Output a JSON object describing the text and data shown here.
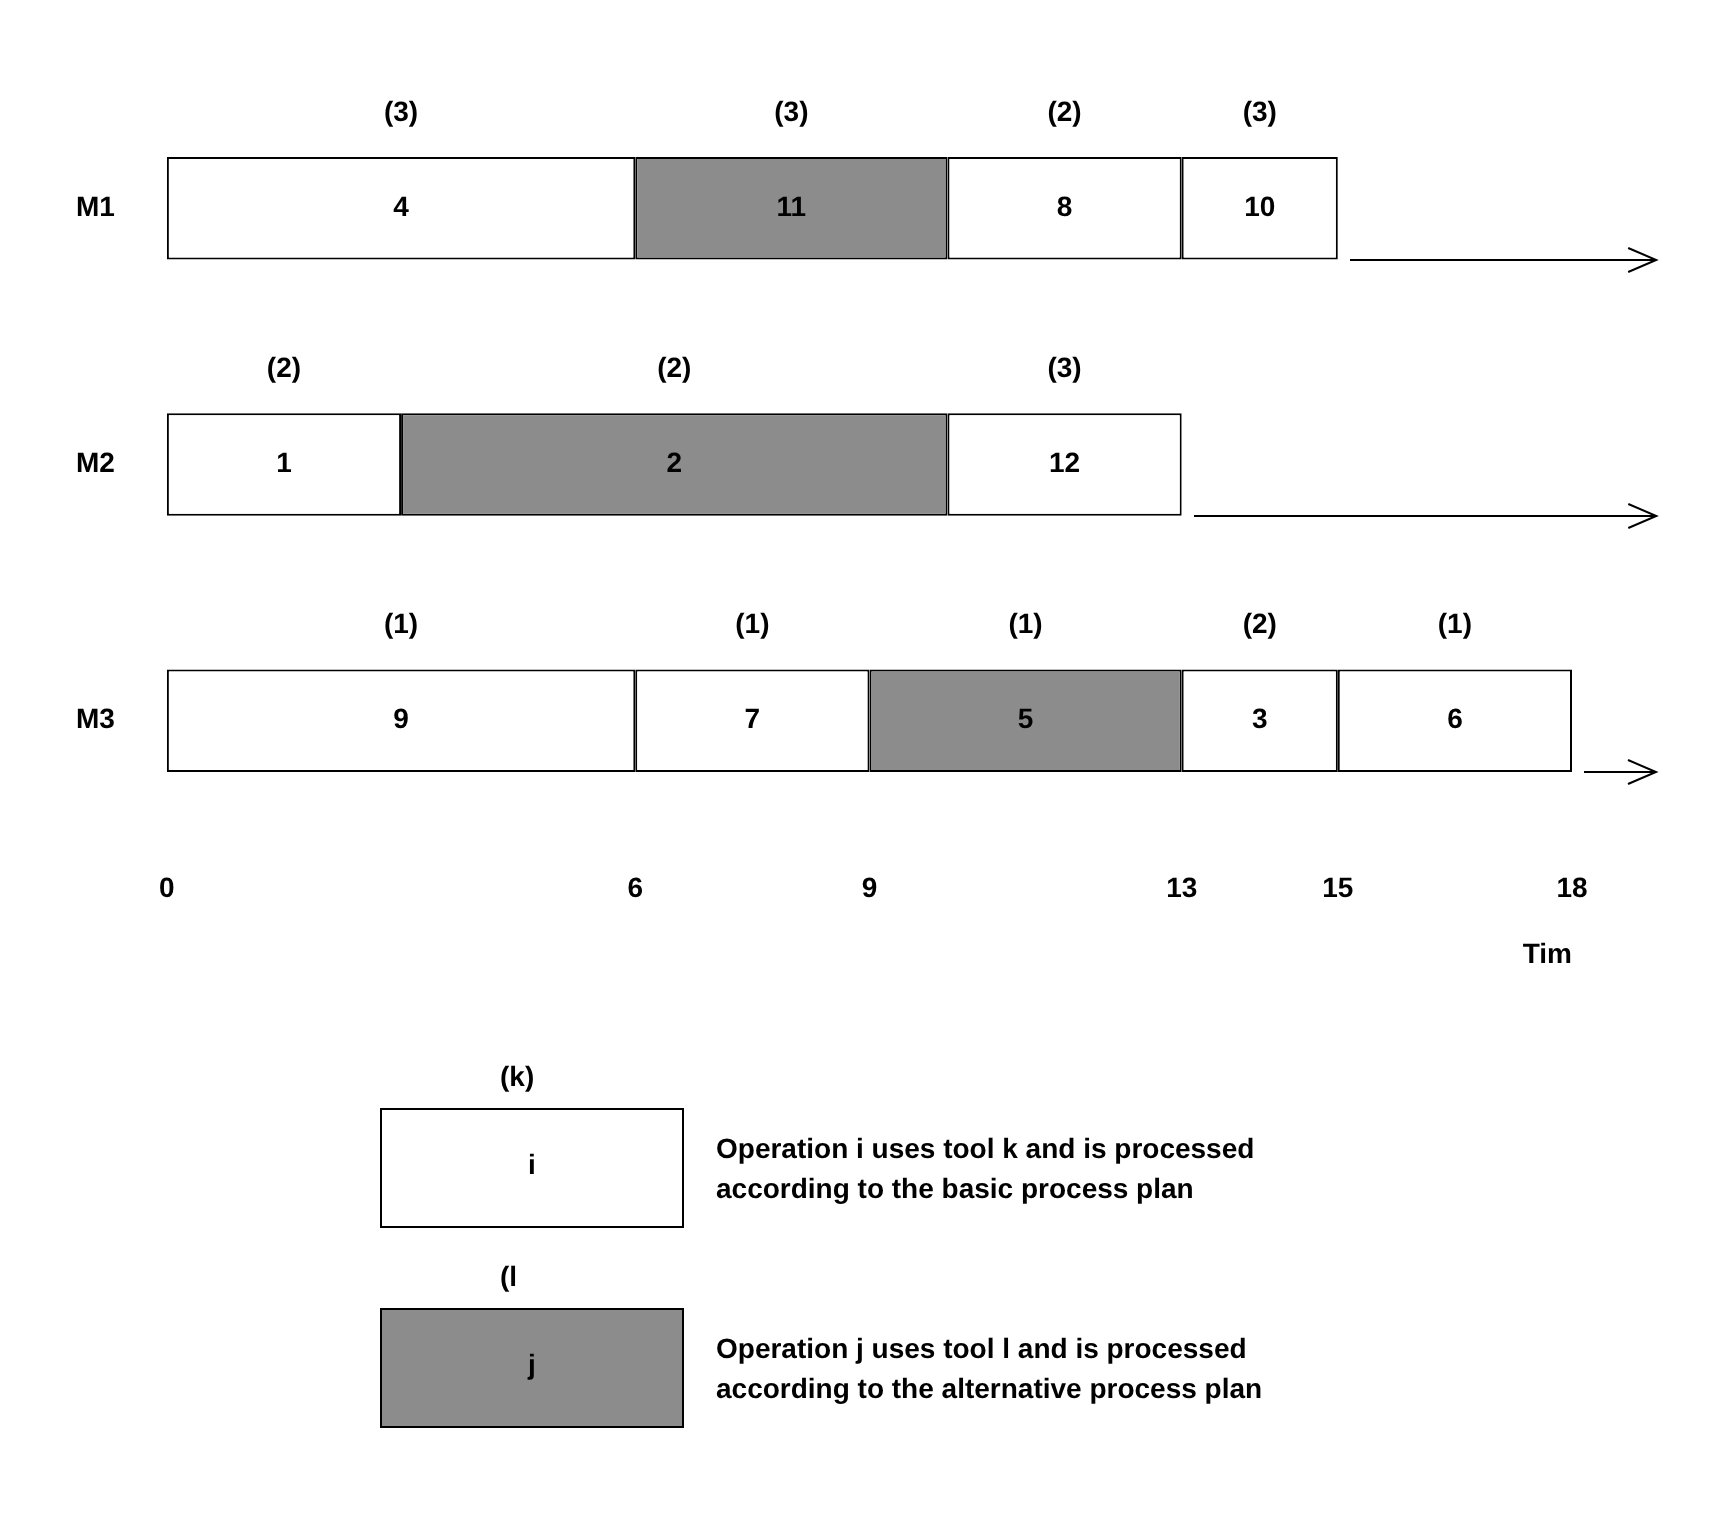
{
  "chart_data": {
    "type": "bar",
    "orientation": "horizontal",
    "stacked": true,
    "categories": [
      "M1",
      "M2",
      "M3"
    ],
    "xlabel": "Tim",
    "xlim": [
      0,
      18
    ],
    "xticks": [
      0,
      6,
      9,
      13,
      15,
      18
    ],
    "grid": false,
    "legend": false,
    "series": [
      {
        "colors": [
          "#ffffff",
          "#ffffff",
          "#ffffff"
        ],
        "values": [
          6,
          3,
          6
        ]
      },
      {
        "colors": [
          "#8c8c8c",
          "#8c8c8c",
          "#ffffff"
        ],
        "values": [
          4,
          7,
          3
        ]
      },
      {
        "colors": [
          "#ffffff",
          "#ffffff",
          "#8c8c8c"
        ],
        "values": [
          3,
          3,
          4
        ]
      },
      {
        "colors": [
          "#ffffff",
          "#ffffff",
          "#ffffff"
        ],
        "values": [
          2,
          null,
          2
        ]
      },
      {
        "colors": [
          "#ffffff",
          "#ffffff",
          "#ffffff"
        ],
        "values": [
          null,
          null,
          3
        ]
      }
    ],
    "annotations": [
      "(3)",
      "4",
      "(3)",
      "11",
      "(2)",
      "8",
      "(3)",
      "10",
      "(2)",
      "1",
      "(2)",
      "2",
      "(3)",
      "12",
      "(1)",
      "9",
      "(1)",
      "7",
      "(1)",
      "5",
      "(2)",
      "3",
      "(1)",
      "6",
      "(k)",
      "i",
      "Operation i uses tool k  and is processed according to the basic process plan",
      "(l",
      "j",
      "Operation j uses tool l and is processed according to the alternative process plan"
    ]
  }
}
